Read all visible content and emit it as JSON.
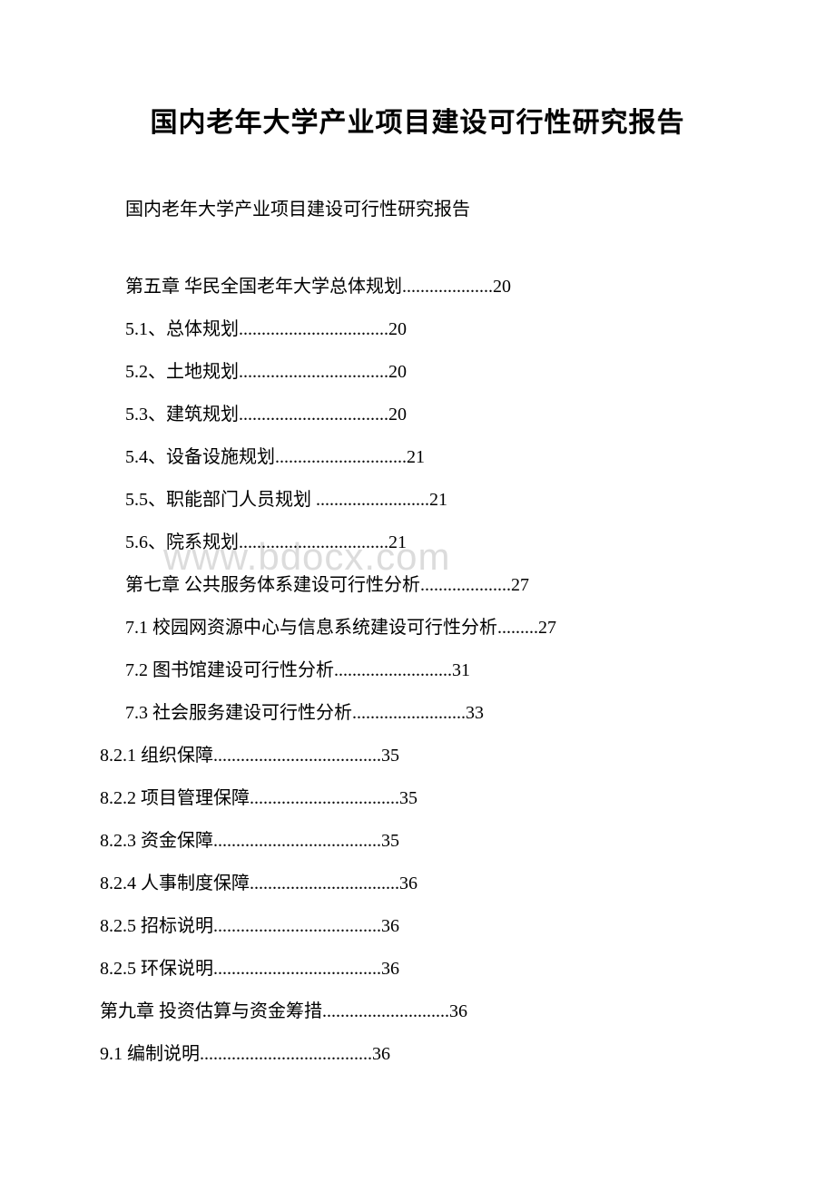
{
  "title": "国内老年大学产业项目建设可行性研究报告",
  "subtitle": "国内老年大学产业项目建设可行性研究报告",
  "watermark": "www.bdocx.com",
  "toc": {
    "indented": [
      {
        "text": "第五章 华民全国老年大学总体规划....................20"
      },
      {
        "text": "5.1、总体规划.................................20"
      },
      {
        "text": "5.2、土地规划.................................20"
      },
      {
        "text": "5.3、建筑规划.................................20"
      },
      {
        "text": "5.4、设备设施规划.............................21"
      },
      {
        "text": "5.5、职能部门人员规划 .........................21"
      },
      {
        "text": "5.6、院系规划.................................21"
      },
      {
        "text": "第七章 公共服务体系建设可行性分析....................27"
      },
      {
        "text": "7.1 校园网资源中心与信息系统建设可行性分析.........27"
      },
      {
        "text": "7.2 图书馆建设可行性分析..........................31"
      },
      {
        "text": "7.3 社会服务建设可行性分析.........................33"
      }
    ],
    "outdented": [
      {
        "text": "8.2.1 组织保障.....................................35"
      },
      {
        "text": "8.2.2 项目管理保障.................................35"
      },
      {
        "text": "8.2.3 资金保障.....................................35"
      },
      {
        "text": "8.2.4 人事制度保障.................................36"
      },
      {
        "text": "8.2.5 招标说明.....................................36"
      },
      {
        "text": "8.2.5 环保说明.....................................36"
      },
      {
        "text": "第九章 投资估算与资金筹措............................36"
      },
      {
        "text": " 9.1 编制说明......................................36"
      }
    ]
  },
  "colors": {
    "text": "#000000",
    "background": "#ffffff",
    "watermark": "#dcdcdc"
  },
  "typography": {
    "title_fontsize": 30,
    "body_fontsize": 20,
    "font_family": "SimSun"
  }
}
